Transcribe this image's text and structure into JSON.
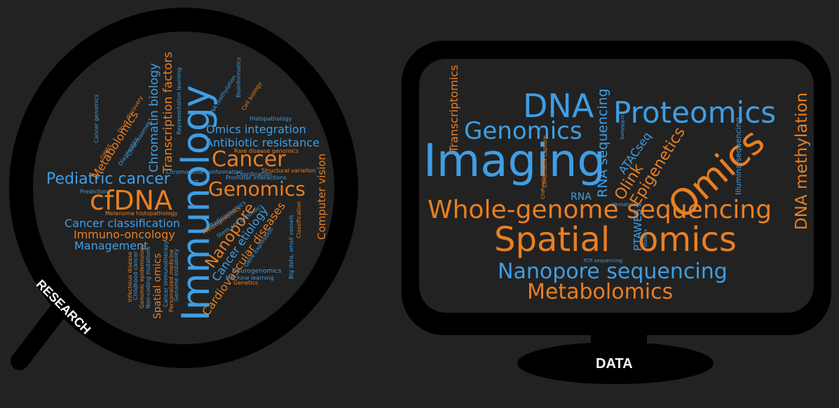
{
  "colors": {
    "background": "#222222",
    "blue": "#3f9ee4",
    "orange": "#e97f22",
    "frame": "#000000",
    "label": "#ffffff"
  },
  "labels": {
    "research": "RESEARCH",
    "data": "DATA"
  },
  "icons": {
    "research": "magnifying-glass",
    "data": "computer-monitor"
  },
  "research_words": {
    "immunology": "Immunology",
    "cfdna": "cfDNA",
    "genomics": "Genomics",
    "cancer": "Cancer",
    "pediatric_cancer": "Pediatric cancer",
    "omics_integration": "Omics integration",
    "antibiotic_resistance": "Antibiotic resistance",
    "chromatin_biology": "Chromatin biology",
    "transcription_factors": "Transcription factors",
    "metabolomics": "Metabolomics",
    "cancer_classification": "Cancer classification",
    "immuno_oncology": "Immuno-oncology",
    "management": "Management",
    "nanopore": "Nanopore",
    "cancer_etiology": "Cancer etiology",
    "cardiovascular_diseases": "Cardiovascular diseases",
    "computer_vision": "Computer vision",
    "spatial_omics": "Spatial omics",
    "melanoma_histopathology": "Melanoma histopathology",
    "prediction": "Prediction",
    "chromosome_conformation": "Chromosome conformation",
    "promoter_interactions": "Promoter interactions",
    "structural_variation": "Structural variation",
    "rare_disease_genomics": "Rare disease genomics",
    "coordination": "Coordination",
    "histopathology": "Histopathology",
    "bioinformatics": "Bioinformatics",
    "representation_learning": "Representation learning",
    "dna_methylation": "DNA methylation",
    "cell_biology": "Cell biology",
    "neurogenomics": "Neurogenomics",
    "machine_learning": "Machine learning",
    "genetics": "Genetics",
    "big_data": "Big data, small vessels",
    "classification": "Classification",
    "gene_expression": "Gene expression",
    "infectious_disease": "Infectious disease",
    "childhood_cancer": "Childhood cancer",
    "genomic_epidemiology": "Genomic epidemiology",
    "non_coding_mutations": "Non-coding mutations",
    "cancer_immunotherapy": "Cancer immunotherapy",
    "personalized_medicine": "Personalized medicine",
    "genome_instability": "Genome instability",
    "ai": "AI",
    "cancer_genomics": "Cancer genomics",
    "diagnostics": "Diagnostics",
    "drug_discovery": "Drug discovery",
    "stem_cell_genomics": "Stem cell genomics",
    "proteogenomics": "Proteogenomics",
    "radiogenomics": "Radiogenomics",
    "chromosomes": "Chromosomes",
    "gwas": "GWAS"
  },
  "data_words": {
    "imaging": "Imaging",
    "dna": "DNA",
    "proteomics": "Proteomics",
    "genomics": "Genomics",
    "omics": "Omics",
    "whole_genome_sequencing": "Whole-genome sequencing",
    "spatial": "Spatial",
    "omics2": "omics",
    "nanopore_sequencing": "Nanopore sequencing",
    "metabolomics": "Metabolomics",
    "transcriptomics": "Transcriptomics",
    "dna_methylation": "DNA methylation",
    "epigenetics": "Epigenetics",
    "olink": "Olink",
    "atacseq": "ATACseq",
    "rna_sequencing": "RNA sequencing",
    "rna": "RNA",
    "illumina_sequencing": "Illumina sequencing",
    "ptawes": "PTAWES",
    "chromatin_capture": "Chromatin capture",
    "chip_sequencing": "ChIP-sequencing",
    "hematology": "Hematology",
    "tcr_sequencing": "TCR sequencing",
    "scrnaseq": "scRNAseq",
    "studies": "Studies"
  }
}
